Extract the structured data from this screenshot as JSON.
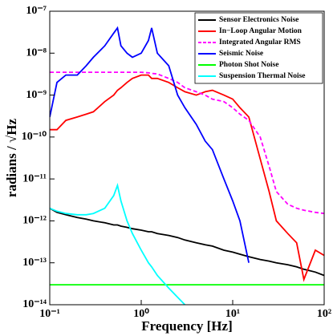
{
  "chart_data": {
    "type": "line",
    "xlabel": "Frequency [Hz]",
    "ylabel": "radians / √Hz",
    "xscale": "log",
    "yscale": "log",
    "grid": true,
    "legend": "upper right",
    "xlim": [
      0.1,
      100
    ],
    "ylim": [
      1e-14,
      1e-07
    ],
    "xticks": [
      {
        "value": 0.1,
        "label": "10⁻¹"
      },
      {
        "value": 1,
        "label": "10⁰"
      },
      {
        "value": 10,
        "label": "10¹"
      },
      {
        "value": 100,
        "label": "10²"
      }
    ],
    "yticks": [
      {
        "value": 1e-14,
        "label": "10⁻¹⁴"
      },
      {
        "value": 1e-13,
        "label": "10⁻¹³"
      },
      {
        "value": 1e-12,
        "label": "10⁻¹²"
      },
      {
        "value": 1e-11,
        "label": "10⁻¹¹"
      },
      {
        "value": 1e-10,
        "label": "10⁻¹⁰"
      },
      {
        "value": 1e-09,
        "label": "10⁻⁹"
      },
      {
        "value": 1e-08,
        "label": "10⁻⁸"
      },
      {
        "value": 1e-07,
        "label": "10⁻⁷"
      }
    ],
    "x": [
      0.1,
      0.12,
      0.15,
      0.2,
      0.25,
      0.3,
      0.4,
      0.5,
      0.55,
      0.6,
      0.7,
      0.8,
      1,
      1.2,
      1.3,
      1.5,
      2,
      2.5,
      3,
      4,
      5,
      6,
      8,
      10,
      12,
      15,
      20,
      25,
      30,
      40,
      50,
      60,
      80,
      100
    ],
    "series": [
      {
        "name": "Sensor Electronics Noise",
        "color": "#000000",
        "style": "solid",
        "values": [
          2e-12,
          1.6e-12,
          1.4e-12,
          1.2e-12,
          1.1e-12,
          1e-12,
          9e-13,
          8e-13,
          8e-13,
          7.5e-13,
          7e-13,
          6.5e-13,
          6e-13,
          5.5e-13,
          5.5e-13,
          5e-13,
          4.5e-13,
          4e-13,
          3.5e-13,
          3e-13,
          2.7e-13,
          2.5e-13,
          2e-13,
          1.8e-13,
          1.6e-13,
          1.4e-13,
          1.2e-13,
          1.1e-13,
          1e-13,
          9e-14,
          8e-14,
          7e-14,
          6e-14,
          5e-14
        ]
      },
      {
        "name": "In−Loop Angular Motion",
        "color": "#ff0000",
        "style": "solid",
        "values": [
          1.5e-10,
          1.5e-10,
          2.5e-10,
          3e-10,
          3.5e-10,
          4e-10,
          7e-10,
          1e-09,
          1.3e-09,
          1.5e-09,
          2e-09,
          2.5e-09,
          3e-09,
          3e-09,
          2.5e-09,
          2.5e-09,
          2e-09,
          1.5e-09,
          1.2e-09,
          1e-09,
          1.2e-09,
          1.3e-09,
          1e-09,
          8e-10,
          5e-10,
          3e-10,
          3e-11,
          5e-12,
          1e-12,
          5e-13,
          3e-13,
          4e-14,
          2e-13,
          1.5e-13
        ]
      },
      {
        "name": "Integrated Angular RMS",
        "color": "#ff00ff",
        "style": "dashed",
        "values": [
          3.5e-09,
          3.5e-09,
          3.5e-09,
          3.5e-09,
          3.5e-09,
          3.5e-09,
          3.5e-09,
          3.5e-09,
          3.5e-09,
          3.5e-09,
          3.5e-09,
          3.5e-09,
          3.5e-09,
          3.4e-09,
          3.3e-09,
          3.2e-09,
          2.5e-09,
          2e-09,
          1.5e-09,
          1.2e-09,
          1e-09,
          8e-10,
          7e-10,
          5e-10,
          3.5e-10,
          2.5e-10,
          1e-10,
          2e-11,
          5e-12,
          2.5e-12,
          2e-12,
          1.8e-12,
          1.6e-12,
          1.5e-12
        ]
      },
      {
        "name": "Seismic Noise",
        "color": "#0000ff",
        "style": "solid",
        "values": [
          3e-10,
          2e-09,
          3e-09,
          3e-09,
          5e-09,
          8e-09,
          1.5e-08,
          3e-08,
          4e-08,
          1.5e-08,
          1e-08,
          8e-09,
          1e-08,
          2e-08,
          4e-08,
          1e-08,
          5e-09,
          1e-09,
          5e-10,
          2e-10,
          8e-11,
          5e-11,
          1e-11,
          3e-12,
          1e-12,
          1e-13,
          null,
          null,
          null,
          null,
          null,
          null,
          null,
          null
        ]
      },
      {
        "name": "Photon Shot Noise",
        "color": "#00ff00",
        "style": "solid",
        "values": [
          3e-14,
          3e-14,
          3e-14,
          3e-14,
          3e-14,
          3e-14,
          3e-14,
          3e-14,
          3e-14,
          3e-14,
          3e-14,
          3e-14,
          3e-14,
          3e-14,
          3e-14,
          3e-14,
          3e-14,
          3e-14,
          3e-14,
          3e-14,
          3e-14,
          3e-14,
          3e-14,
          3e-14,
          3e-14,
          3e-14,
          3e-14,
          3e-14,
          3e-14,
          3e-14,
          3e-14,
          3e-14,
          3e-14,
          3e-14
        ]
      },
      {
        "name": "Suspension Thermal Noise",
        "color": "#00ffff",
        "style": "solid",
        "values": [
          2e-12,
          1.7e-12,
          1.5e-12,
          1.4e-12,
          1.4e-12,
          1.5e-12,
          2e-12,
          4e-12,
          7e-12,
          3e-12,
          1e-12,
          5e-13,
          2e-13,
          1e-13,
          8e-14,
          5e-14,
          2.5e-14,
          1.5e-14,
          1e-14,
          null,
          null,
          null,
          null,
          null,
          null,
          null,
          null,
          null,
          null,
          null,
          null,
          null,
          null,
          null
        ]
      }
    ]
  }
}
